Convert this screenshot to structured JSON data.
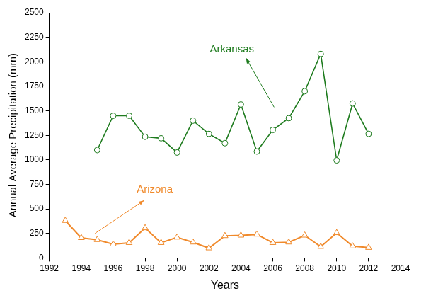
{
  "chart_data": {
    "type": "line",
    "x_label": "Years",
    "y_label": "Annual Average Precipitation (mm)",
    "x": [
      1993,
      1994,
      1995,
      1996,
      1997,
      1998,
      1999,
      2000,
      2001,
      2002,
      2003,
      2004,
      2005,
      2006,
      2007,
      2008,
      2009,
      2010,
      2011,
      2012
    ],
    "series": [
      {
        "name": "Arkansas",
        "color": "#1e7b1e",
        "marker": "circle",
        "line_style": "solid",
        "values": [
          null,
          null,
          1100,
          1450,
          1450,
          1235,
          1220,
          1075,
          1400,
          1265,
          1170,
          1565,
          1085,
          1305,
          1425,
          1700,
          2080,
          995,
          1575,
          1265
        ]
      },
      {
        "name": "Arizona",
        "color": "#f0892a",
        "marker": "triangle",
        "line_style": "solid",
        "values": [
          380,
          205,
          185,
          140,
          155,
          305,
          155,
          210,
          160,
          100,
          225,
          230,
          240,
          155,
          160,
          230,
          115,
          255,
          120,
          105
        ]
      }
    ],
    "xlim": [
      1992,
      2014
    ],
    "xticks": [
      1992,
      1994,
      1996,
      1998,
      2000,
      2002,
      2004,
      2006,
      2008,
      2010,
      2012,
      2014
    ],
    "ylim": [
      0,
      2500
    ],
    "yticks": [
      0,
      250,
      500,
      750,
      1000,
      1250,
      1500,
      1750,
      2000,
      2250,
      2500
    ],
    "grid": false
  }
}
